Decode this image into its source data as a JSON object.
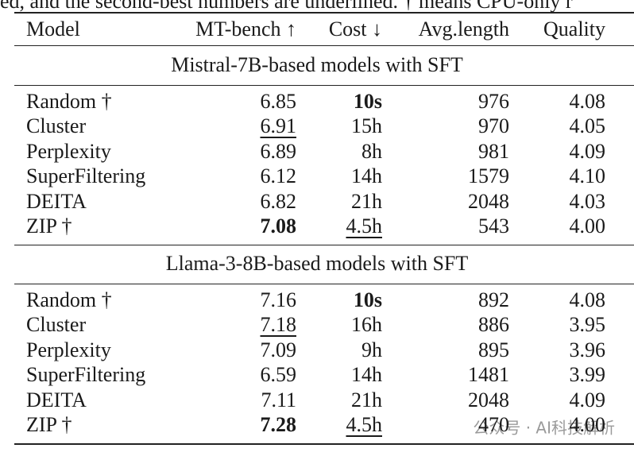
{
  "caption": "ed, and the second-best numbers are underlined. † means CPU-only r",
  "table": {
    "columns": [
      "Model",
      "MT-bench ↑",
      "Cost ↓",
      "Avg.length",
      "Quality"
    ],
    "sections": [
      {
        "title": "Mistral-7B-based models with SFT",
        "rows": [
          [
            "Random †",
            "6.85",
            "10s",
            "976",
            "4.08"
          ],
          [
            "Cluster",
            "6.91",
            "15h",
            "970",
            "4.05"
          ],
          [
            "Perplexity",
            "6.89",
            "8h",
            "981",
            "4.09"
          ],
          [
            "SuperFiltering",
            "6.12",
            "14h",
            "1579",
            "4.10"
          ],
          [
            "DEITA",
            "6.82",
            "21h",
            "2048",
            "4.03"
          ],
          [
            "ZIP †",
            "7.08",
            "4.5h",
            "543",
            "4.00"
          ]
        ]
      },
      {
        "title": "Llama-3-8B-based models with SFT",
        "rows": [
          [
            "Random †",
            "7.16",
            "10s",
            "892",
            "4.08"
          ],
          [
            "Cluster",
            "7.18",
            "16h",
            "886",
            "3.95"
          ],
          [
            "Perplexity",
            "7.09",
            "9h",
            "895",
            "3.96"
          ],
          [
            "SuperFiltering",
            "6.59",
            "14h",
            "1481",
            "3.99"
          ],
          [
            "DEITA",
            "7.11",
            "21h",
            "2048",
            "4.09"
          ],
          [
            "ZIP †",
            "7.28",
            "4.5h",
            "470",
            "4.00"
          ]
        ]
      }
    ]
  },
  "watermark": "公众号 · AI科技解析"
}
